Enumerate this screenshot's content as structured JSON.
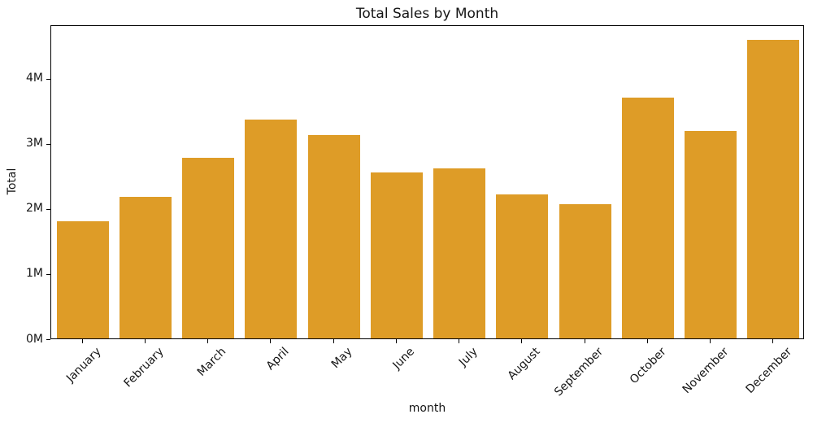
{
  "chart_data": {
    "type": "bar",
    "title": "Total Sales by Month",
    "xlabel": "month",
    "ylabel": "Total",
    "categories": [
      "January",
      "February",
      "March",
      "April",
      "May",
      "June",
      "July",
      "August",
      "September",
      "October",
      "November",
      "December"
    ],
    "values": [
      1800000,
      2170000,
      2770000,
      3360000,
      3120000,
      2550000,
      2610000,
      2210000,
      2060000,
      3700000,
      3180000,
      4580000
    ],
    "values_display": [
      "1.80M",
      "2.17M",
      "2.77M",
      "3.36M",
      "3.12M",
      "2.55M",
      "2.61M",
      "2.21M",
      "2.06M",
      "3.70M",
      "3.18M",
      "4.58M"
    ],
    "y_ticks": [
      {
        "label": "0M",
        "value": 0
      },
      {
        "label": "1M",
        "value": 1000000
      },
      {
        "label": "2M",
        "value": 2000000
      },
      {
        "label": "3M",
        "value": 3000000
      },
      {
        "label": "4M",
        "value": 4000000
      }
    ],
    "ylim": [
      0,
      4820000
    ],
    "grid": false,
    "legend": null,
    "bar_color": "#DE9C27",
    "axis_color": "#000000",
    "text_color": "#151515",
    "background_color": "#ffffff"
  }
}
